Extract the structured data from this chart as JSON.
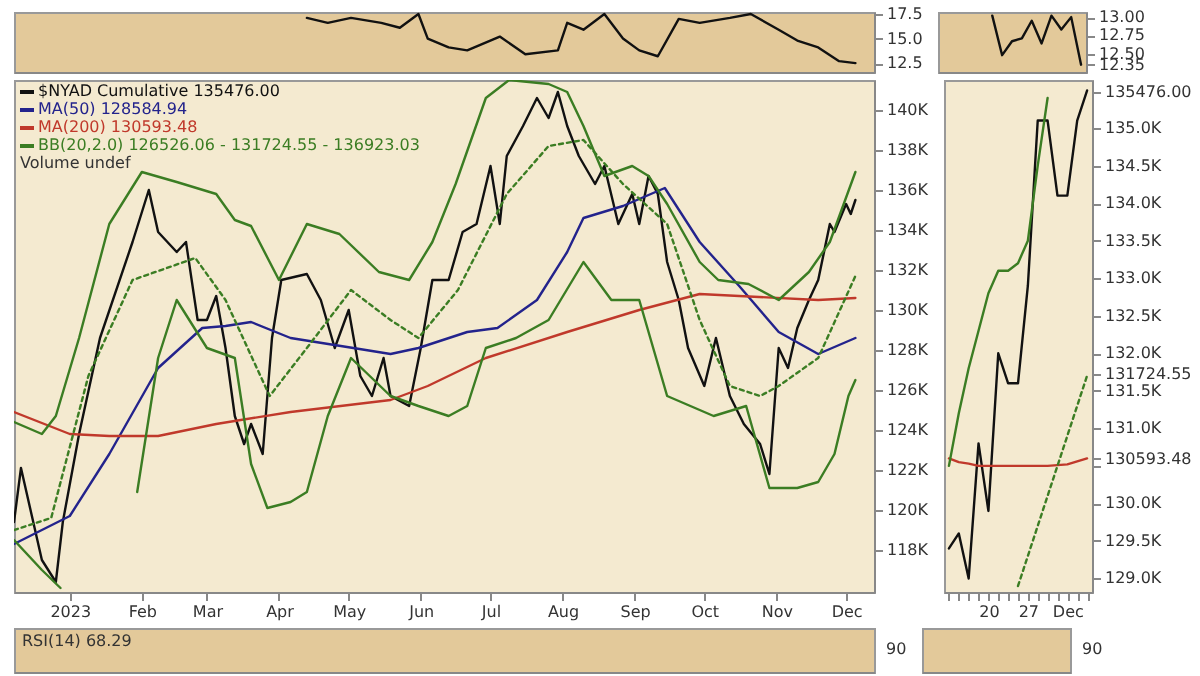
{
  "chart_data": [
    {
      "type": "line",
      "tick_labels": "y",
      "xlim": [
        "2022-12-08",
        "2023-12-13"
      ],
      "ylim": [
        11.6,
        17.7
      ],
      "yticks": [
        {
          "value": 12.5,
          "label": "12.5"
        },
        {
          "value": 15,
          "label": "15.0"
        },
        {
          "value": 17.5,
          "label": "17.5"
        }
      ],
      "grid": false,
      "legend": false,
      "series": [
        {
          "color": "#111111",
          "x": [
            "2023-04-13",
            "2023-04-22",
            "2023-05-02",
            "2023-05-15",
            "2023-05-23",
            "2023-05-31",
            "2023-06-04",
            "2023-06-13",
            "2023-06-21",
            "2023-07-05",
            "2023-07-16",
            "2023-07-30",
            "2023-08-03",
            "2023-08-10",
            "2023-08-19",
            "2023-08-27",
            "2023-09-03",
            "2023-09-11",
            "2023-09-20",
            "2023-09-29",
            "2023-10-12",
            "2023-10-21",
            "2023-11-02",
            "2023-11-10",
            "2023-11-19",
            "2023-11-28",
            "2023-12-05"
          ],
          "values": [
            17.1,
            16.6,
            17.1,
            16.6,
            16.1,
            17.5,
            15.0,
            14.1,
            13.8,
            15.2,
            13.4,
            13.8,
            16.6,
            15.9,
            17.5,
            15.0,
            13.8,
            13.2,
            17.0,
            16.6,
            17.1,
            17.5,
            15.9,
            14.8,
            14.1,
            12.7,
            12.5
          ]
        }
      ]
    },
    {
      "type": "line",
      "tick_labels": "y",
      "categories": [
        null,
        null,
        null,
        null,
        null,
        null,
        null,
        null,
        null,
        null,
        null,
        null,
        null,
        null,
        null
      ],
      "ylim": [
        12.25,
        13.07
      ],
      "yticks": [
        {
          "value": 12.35,
          "label": "12.35"
        },
        {
          "value": 12.5,
          "label": "12.50"
        },
        {
          "value": 12.75,
          "label": "12.75"
        },
        {
          "value": 13,
          "label": "13.00"
        }
      ],
      "grid": false,
      "legend": false,
      "series": [
        {
          "color": "#111111",
          "values": [
            null,
            null,
            null,
            null,
            null,
            13.02,
            12.48,
            12.67,
            12.71,
            12.95,
            12.64,
            13.02,
            12.83,
            13.0,
            12.35
          ]
        }
      ]
    },
    {
      "type": "line",
      "xlim": [
        "2022-12-08",
        "2023-12-13"
      ],
      "ylim": [
        115900,
        141500
      ],
      "grid": false,
      "legend": "top left",
      "annotations": [
        "Volume undef"
      ],
      "xticks": [
        {
          "value": "2023-01-01",
          "label": "2023"
        },
        {
          "value": "2023-02-01",
          "label": "Feb"
        },
        {
          "value": "2023-03-01",
          "label": "Mar"
        },
        {
          "value": "2023-04-01",
          "label": "Apr"
        },
        {
          "value": "2023-05-01",
          "label": "May"
        },
        {
          "value": "2023-06-01",
          "label": "Jun"
        },
        {
          "value": "2023-07-01",
          "label": "Jul"
        },
        {
          "value": "2023-08-01",
          "label": "Aug"
        },
        {
          "value": "2023-09-01",
          "label": "Sep"
        },
        {
          "value": "2023-10-01",
          "label": "Oct"
        },
        {
          "value": "2023-11-01",
          "label": "Nov"
        },
        {
          "value": "2023-12-01",
          "label": "Dec"
        }
      ],
      "yticks": [
        {
          "value": 118000,
          "label": "118K"
        },
        {
          "value": 120000,
          "label": "120K"
        },
        {
          "value": 122000,
          "label": "122K"
        },
        {
          "value": 124000,
          "label": "124K"
        },
        {
          "value": 126000,
          "label": "126K"
        },
        {
          "value": 128000,
          "label": "128K"
        },
        {
          "value": 130000,
          "label": "130K"
        },
        {
          "value": 132000,
          "label": "132K"
        },
        {
          "value": 134000,
          "label": "134K"
        },
        {
          "value": 136000,
          "label": "136K"
        },
        {
          "value": 138000,
          "label": "138K"
        },
        {
          "value": 140000,
          "label": "140K"
        }
      ],
      "series": [
        {
          "name": "$NYAD Cumulative 135476.00",
          "color": "#111111",
          "x": [
            "2022-12-08",
            "2022-12-11",
            "2022-12-20",
            "2022-12-26",
            "2022-12-29",
            "2023-01-05",
            "2023-01-14",
            "2023-01-28",
            "2023-02-04",
            "2023-02-08",
            "2023-02-16",
            "2023-02-20",
            "2023-02-25",
            "2023-03-01",
            "2023-03-05",
            "2023-03-09",
            "2023-03-13",
            "2023-03-17",
            "2023-03-20",
            "2023-03-25",
            "2023-03-29",
            "2023-04-02",
            "2023-04-13",
            "2023-04-19",
            "2023-04-25",
            "2023-05-01",
            "2023-05-06",
            "2023-05-11",
            "2023-05-16",
            "2023-05-19",
            "2023-05-27",
            "2023-06-01",
            "2023-06-06",
            "2023-06-13",
            "2023-06-19",
            "2023-06-25",
            "2023-07-01",
            "2023-07-05",
            "2023-07-08",
            "2023-07-15",
            "2023-07-21",
            "2023-07-26",
            "2023-07-30",
            "2023-08-03",
            "2023-08-08",
            "2023-08-15",
            "2023-08-19",
            "2023-08-25",
            "2023-08-31",
            "2023-09-03",
            "2023-09-07",
            "2023-09-11",
            "2023-09-15",
            "2023-09-20",
            "2023-09-24",
            "2023-10-01",
            "2023-10-06",
            "2023-10-12",
            "2023-10-18",
            "2023-10-25",
            "2023-10-29",
            "2023-11-02",
            "2023-11-06",
            "2023-11-10",
            "2023-11-15",
            "2023-11-19",
            "2023-11-24",
            "2023-11-26",
            "2023-12-01",
            "2023-12-03",
            "2023-12-05"
          ],
          "values": [
            119400,
            122100,
            117500,
            116400,
            119400,
            123800,
            128600,
            133400,
            136000,
            133900,
            132900,
            133400,
            129500,
            129500,
            130700,
            128100,
            124700,
            123300,
            124300,
            122800,
            128600,
            131500,
            131800,
            130500,
            128100,
            130000,
            126700,
            125700,
            127600,
            125700,
            125200,
            128100,
            131500,
            131500,
            133900,
            134300,
            137200,
            134300,
            137700,
            139200,
            140600,
            139600,
            140900,
            139200,
            137700,
            136300,
            137200,
            134300,
            135800,
            134300,
            136700,
            135800,
            132400,
            130500,
            128100,
            126200,
            128600,
            125700,
            124300,
            123300,
            121800,
            128100,
            127100,
            129100,
            130500,
            131500,
            134300,
            133900,
            135300,
            134800,
            135500
          ]
        },
        {
          "name": "MA(50) 128584.94",
          "color": "#23238c",
          "x": [
            "2022-12-08",
            "2023-01-01",
            "2023-01-18",
            "2023-02-08",
            "2023-02-27",
            "2023-03-09",
            "2023-03-20",
            "2023-04-06",
            "2023-05-03",
            "2023-05-19",
            "2023-05-31",
            "2023-06-21",
            "2023-07-04",
            "2023-07-21",
            "2023-08-03",
            "2023-08-10",
            "2023-08-27",
            "2023-09-14",
            "2023-09-29",
            "2023-10-16",
            "2023-11-02",
            "2023-11-19",
            "2023-12-05"
          ],
          "values": [
            118300,
            119700,
            122800,
            127100,
            129100,
            129200,
            129400,
            128600,
            128100,
            127800,
            128100,
            128900,
            129100,
            130500,
            132900,
            134600,
            135200,
            136100,
            133400,
            131200,
            128900,
            127800,
            128600
          ]
        },
        {
          "name": "MA(200) 130593.48",
          "color": "#c0392b",
          "x": [
            "2022-12-08",
            "2023-01-01",
            "2023-01-18",
            "2023-02-08",
            "2023-03-05",
            "2023-04-06",
            "2023-05-19",
            "2023-06-04",
            "2023-06-29",
            "2023-08-03",
            "2023-09-03",
            "2023-09-29",
            "2023-10-16",
            "2023-11-19",
            "2023-12-05"
          ],
          "values": [
            124900,
            123800,
            123700,
            123700,
            124300,
            124900,
            125500,
            126200,
            127600,
            128900,
            130000,
            130800,
            130700,
            130500,
            130600
          ]
        },
        {
          "name": "BB(20,2.0) 126526.06 - 131724.55 - 136923.03",
          "color": "#3b7d23",
          "x": [
            "2022-12-08",
            "2022-12-20",
            "2022-12-26",
            "2023-01-05",
            "2023-01-18",
            "2023-02-01",
            "2023-02-16",
            "2023-03-05",
            "2023-03-13",
            "2023-03-20",
            "2023-04-01",
            "2023-04-13",
            "2023-04-27",
            "2023-05-14",
            "2023-05-27",
            "2023-06-06",
            "2023-06-16",
            "2023-06-29",
            "2023-07-09",
            "2023-07-26",
            "2023-08-03",
            "2023-08-10",
            "2023-08-19",
            "2023-08-31",
            "2023-09-07",
            "2023-09-15",
            "2023-09-29",
            "2023-10-07",
            "2023-10-20",
            "2023-11-02",
            "2023-11-15",
            "2023-11-24",
            "2023-12-05"
          ],
          "values": [
            124400,
            123800,
            124700,
            128600,
            134300,
            136900,
            136400,
            135800,
            134500,
            134200,
            131500,
            134300,
            133800,
            131900,
            131500,
            133400,
            136300,
            140600,
            141500,
            141300,
            140900,
            139200,
            136700,
            137200,
            136700,
            135300,
            132400,
            131500,
            131300,
            130500,
            131900,
            133400,
            136900
          ]
        },
        {
          "color": "#3b7d23",
          "line_style": "dotted",
          "x": [
            "2022-12-08",
            "2022-12-24",
            "2023-01-09",
            "2023-01-28",
            "2023-02-24",
            "2023-03-09",
            "2023-03-28",
            "2023-04-13",
            "2023-05-02",
            "2023-05-19",
            "2023-05-31",
            "2023-06-17",
            "2023-07-08",
            "2023-07-26",
            "2023-08-10",
            "2023-08-27",
            "2023-09-15",
            "2023-09-29",
            "2023-10-12",
            "2023-10-25",
            "2023-11-02",
            "2023-11-19",
            "2023-12-05"
          ],
          "values": [
            119000,
            119600,
            126700,
            131500,
            132600,
            130500,
            125700,
            128100,
            131000,
            129500,
            128600,
            131000,
            135800,
            138200,
            138500,
            136300,
            134300,
            129500,
            126200,
            125700,
            126200,
            127600,
            131700
          ]
        },
        {
          "color": "#3b7d23",
          "x": [
            "2022-12-08",
            "2022-12-20",
            "2022-12-28",
            "2023-01-10",
            "2023-01-22",
            "2023-01-30",
            "2023-02-08",
            "2023-02-16",
            "2023-03-01",
            "2023-03-13",
            "2023-03-20",
            "2023-03-27",
            "2023-04-06",
            "2023-04-13",
            "2023-04-22",
            "2023-05-02",
            "2023-05-19",
            "2023-05-31",
            "2023-06-13",
            "2023-06-21",
            "2023-06-29",
            "2023-07-12",
            "2023-07-26",
            "2023-08-10",
            "2023-08-22",
            "2023-09-03",
            "2023-09-15",
            "2023-10-05",
            "2023-10-19",
            "2023-10-29",
            "2023-11-10",
            "2023-11-19",
            "2023-11-26",
            "2023-12-02",
            "2023-12-05"
          ],
          "values": [
            118500,
            117000,
            116100,
            null,
            null,
            120900,
            127600,
            130500,
            128100,
            127600,
            122300,
            120100,
            120400,
            120900,
            124700,
            127600,
            125700,
            125200,
            124700,
            125200,
            128100,
            128600,
            129500,
            132400,
            130500,
            130500,
            125700,
            124700,
            125200,
            121100,
            121100,
            121400,
            122800,
            125700,
            126500
          ]
        }
      ]
    },
    {
      "type": "line",
      "categories": [
        null,
        null,
        null,
        null,
        "20",
        null,
        null,
        null,
        "27",
        null,
        null,
        null,
        "Dec",
        null,
        null
      ],
      "ylim": [
        128820,
        135640
      ],
      "grid": false,
      "legend": false,
      "yticks": [
        {
          "value": 129000,
          "label": "129.0K"
        },
        {
          "value": 129500,
          "label": "129.5K"
        },
        {
          "value": 130000,
          "label": "130.0K"
        },
        {
          "value": 130500,
          "label": null
        },
        {
          "value": 130593.48,
          "label": "130593.48"
        },
        {
          "value": 131000,
          "label": "131.0K"
        },
        {
          "value": 131500,
          "label": "131.5K"
        },
        {
          "value": 131724.55,
          "label": "131724.55"
        },
        {
          "value": 132000,
          "label": "132.0K"
        },
        {
          "value": 132500,
          "label": "132.5K"
        },
        {
          "value": 133000,
          "label": "133.0K"
        },
        {
          "value": 133500,
          "label": "133.5K"
        },
        {
          "value": 134000,
          "label": "134.0K"
        },
        {
          "value": 134500,
          "label": "134.5K"
        },
        {
          "value": 135000,
          "label": "135.0K"
        },
        {
          "value": 135476,
          "label": "135476.00"
        }
      ],
      "series": [
        {
          "color": "#111111",
          "values": [
            129400,
            129600,
            129000,
            130800,
            129900,
            132000,
            131600,
            131600,
            132900,
            135100,
            135100,
            134100,
            134100,
            135100,
            135500
          ]
        },
        {
          "color": "#c0392b",
          "values": [
            130600,
            130550,
            130530,
            130500,
            130500,
            130500,
            130500,
            130500,
            130500,
            130500,
            130500,
            130510,
            130520,
            130560,
            130600
          ]
        },
        {
          "color": "#3b7d23",
          "values": [
            130500,
            131200,
            131800,
            132300,
            132800,
            133100,
            133100,
            133200,
            133500,
            134500,
            135400,
            null,
            null,
            null,
            null
          ]
        },
        {
          "color": "#3b7d23",
          "line_style": "dotted",
          "values": [
            null,
            null,
            null,
            null,
            null,
            null,
            null,
            128900,
            129300,
            129700,
            130100,
            130500,
            130900,
            131300,
            131700
          ]
        }
      ]
    },
    {
      "type": "other",
      "title": "RSI(14) 68.29",
      "annotations": [
        "90"
      ]
    },
    {
      "type": "other",
      "annotations": [
        "90"
      ]
    }
  ]
}
